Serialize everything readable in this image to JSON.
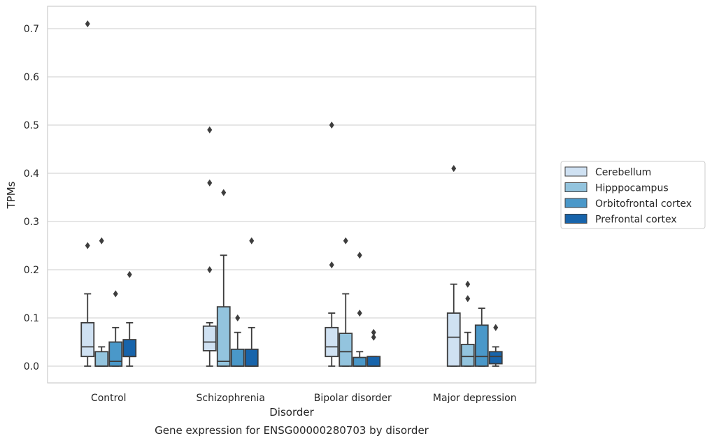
{
  "chart_data": {
    "type": "boxplot",
    "title": "Gene expression for ENSG00000280703 by disorder",
    "xlabel": "Disorder",
    "ylabel": "TPMs",
    "ylim": [
      -0.035,
      0.75
    ],
    "yticks": [
      0.0,
      0.1,
      0.2,
      0.3,
      0.4,
      0.5,
      0.6,
      0.7
    ],
    "ytick_labels": [
      "0.0",
      "0.1",
      "0.2",
      "0.3",
      "0.4",
      "0.5",
      "0.6",
      "0.7"
    ],
    "grid": true,
    "legend_position": "right",
    "categories": [
      "Control",
      "Schizophrenia",
      "Bipolar disorder",
      "Major depression"
    ],
    "series": [
      {
        "name": "Cerebellum",
        "color": "#cfe1f2",
        "boxes": [
          {
            "whislo": 0.0,
            "q1": 0.02,
            "med": 0.04,
            "q3": 0.09,
            "whishi": 0.15,
            "fliers": [
              0.25,
              0.71
            ]
          },
          {
            "whislo": 0.0,
            "q1": 0.032,
            "med": 0.05,
            "q3": 0.083,
            "whishi": 0.09,
            "fliers": [
              0.2,
              0.38,
              0.49
            ]
          },
          {
            "whislo": 0.0,
            "q1": 0.02,
            "med": 0.04,
            "q3": 0.08,
            "whishi": 0.11,
            "fliers": [
              0.21,
              0.5
            ]
          },
          {
            "whislo": 0.0,
            "q1": 0.0,
            "med": 0.06,
            "q3": 0.11,
            "whishi": 0.17,
            "fliers": [
              0.41
            ]
          }
        ]
      },
      {
        "name": "Hipppocampus",
        "color": "#93c4de",
        "boxes": [
          {
            "whislo": 0.0,
            "q1": 0.0,
            "med": 0.0,
            "q3": 0.03,
            "whishi": 0.04,
            "fliers": [
              0.26
            ]
          },
          {
            "whislo": 0.0,
            "q1": 0.0,
            "med": 0.01,
            "q3": 0.123,
            "whishi": 0.23,
            "fliers": [
              0.36
            ]
          },
          {
            "whislo": 0.0,
            "q1": 0.0,
            "med": 0.03,
            "q3": 0.068,
            "whishi": 0.15,
            "fliers": [
              0.26
            ]
          },
          {
            "whislo": 0.0,
            "q1": 0.0,
            "med": 0.02,
            "q3": 0.045,
            "whishi": 0.07,
            "fliers": [
              0.14,
              0.17
            ]
          }
        ]
      },
      {
        "name": "Orbitofrontal cortex",
        "color": "#4a98c9",
        "boxes": [
          {
            "whislo": 0.0,
            "q1": 0.0,
            "med": 0.01,
            "q3": 0.05,
            "whishi": 0.08,
            "fliers": [
              0.15
            ]
          },
          {
            "whislo": 0.0,
            "q1": 0.0,
            "med": 0.0,
            "q3": 0.035,
            "whishi": 0.07,
            "fliers": [
              0.1
            ]
          },
          {
            "whislo": 0.0,
            "q1": 0.0,
            "med": 0.0,
            "q3": 0.018,
            "whishi": 0.03,
            "fliers": [
              0.11,
              0.23
            ]
          },
          {
            "whislo": 0.0,
            "q1": 0.0,
            "med": 0.02,
            "q3": 0.085,
            "whishi": 0.12,
            "fliers": []
          }
        ]
      },
      {
        "name": "Prefrontal cortex",
        "color": "#1764ab",
        "boxes": [
          {
            "whislo": 0.0,
            "q1": 0.02,
            "med": 0.02,
            "q3": 0.055,
            "whishi": 0.09,
            "fliers": [
              0.19
            ]
          },
          {
            "whislo": 0.0,
            "q1": 0.0,
            "med": 0.0,
            "q3": 0.035,
            "whishi": 0.08,
            "fliers": [
              0.26
            ]
          },
          {
            "whislo": 0.0,
            "q1": 0.0,
            "med": 0.0,
            "q3": 0.02,
            "whishi": 0.02,
            "fliers": [
              0.06,
              0.07
            ]
          },
          {
            "whislo": 0.0,
            "q1": 0.005,
            "med": 0.02,
            "q3": 0.03,
            "whishi": 0.04,
            "fliers": [
              0.08
            ]
          }
        ]
      }
    ]
  }
}
